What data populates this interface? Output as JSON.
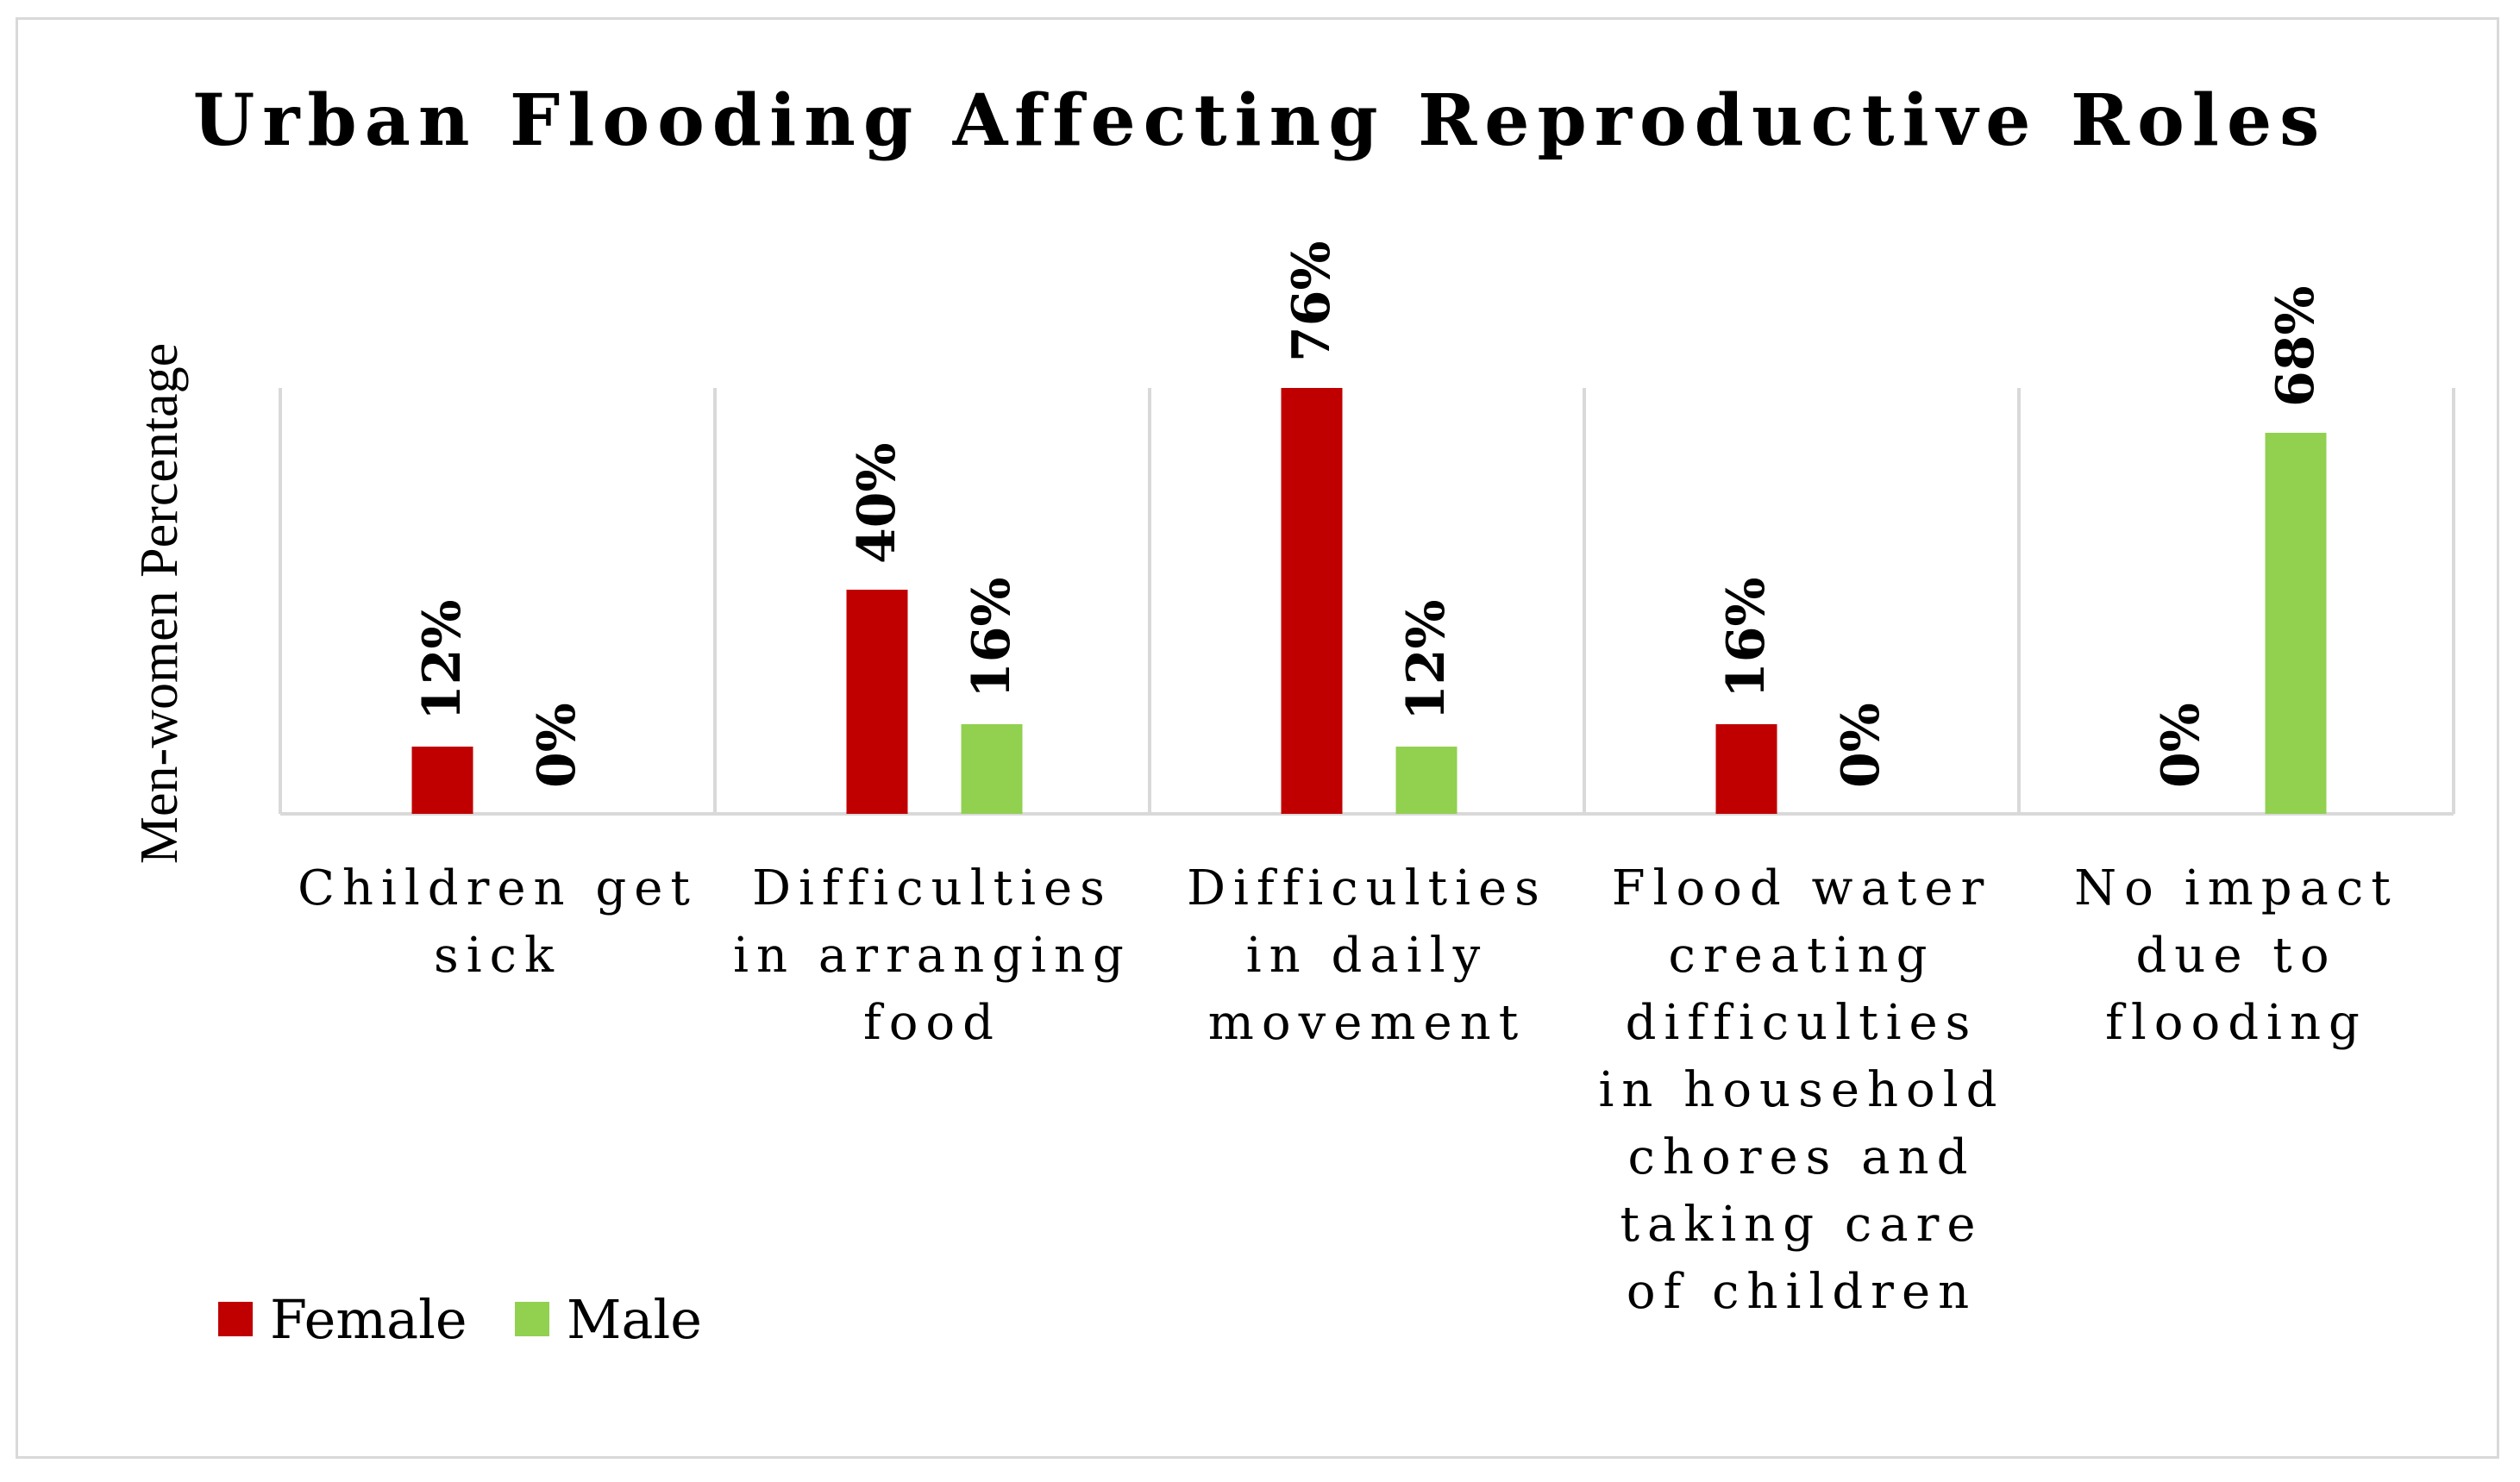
{
  "chart_data": {
    "type": "bar",
    "title": "Urban Flooding Affecting Reproductive Roles",
    "xlabel": "",
    "ylabel": "Men-women Percentage",
    "ylim": [
      0,
      100
    ],
    "grid": false,
    "legend_position": "bottom-left",
    "value_format": "percent",
    "categories": [
      [
        "Children get",
        "sick"
      ],
      [
        "Difficulties",
        "in arranging",
        "food"
      ],
      [
        "Difficulties",
        "in daily",
        "movement"
      ],
      [
        "Flood water",
        "creating",
        "difficulties",
        "in household",
        "chores and",
        "taking care",
        "of children"
      ],
      [
        "No impact",
        "due to",
        "flooding"
      ]
    ],
    "series": [
      {
        "name": "Female",
        "color": "#c00000",
        "values": [
          12,
          40,
          76,
          16,
          0
        ],
        "labels": [
          "12%",
          "40%",
          "76%",
          "16%",
          "0%"
        ]
      },
      {
        "name": "Male",
        "color": "#92d050",
        "values": [
          0,
          16,
          12,
          0,
          68
        ],
        "labels": [
          "0%",
          "16%",
          "12%",
          "0%",
          "68%"
        ]
      }
    ]
  }
}
